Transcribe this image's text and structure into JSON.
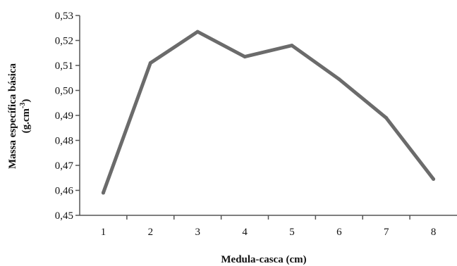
{
  "chart_data": {
    "type": "line",
    "title": "",
    "xlabel": "Medula-casca (cm)",
    "ylabel_line1": "Massa específica básica",
    "ylabel_line2_base": "(g.cm",
    "ylabel_line2_sup": "-3",
    "ylabel_line2_end": ")",
    "categories": [
      "1",
      "2",
      "3",
      "4",
      "5",
      "6",
      "7",
      "8"
    ],
    "yticks": [
      "0,45",
      "0,46",
      "0,47",
      "0,48",
      "0,49",
      "0,50",
      "0,51",
      "0,52",
      "0,53"
    ],
    "ylim": [
      0.45,
      0.53
    ],
    "grid": false,
    "legend": "none",
    "series": [
      {
        "values": [
          0.459,
          0.511,
          0.5235,
          0.5135,
          0.518,
          0.5045,
          0.489,
          0.4645
        ]
      }
    ],
    "line_color": "#6b6b6b"
  }
}
